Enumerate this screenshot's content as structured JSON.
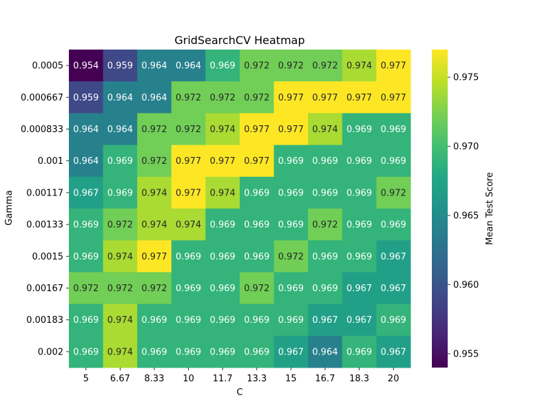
{
  "chart_data": {
    "type": "heatmap",
    "title": "GridSearchCV Heatmap",
    "xlabel": "C",
    "ylabel": "Gamma",
    "x_categories": [
      "5",
      "6.67",
      "8.33",
      "10",
      "11.7",
      "13.3",
      "15",
      "16.7",
      "18.3",
      "20"
    ],
    "y_categories": [
      "0.0005",
      "0.000667",
      "0.000833",
      "0.001",
      "0.00117",
      "0.00133",
      "0.0015",
      "0.00167",
      "0.00183",
      "0.002"
    ],
    "values": [
      [
        0.954,
        0.959,
        0.964,
        0.964,
        0.969,
        0.972,
        0.972,
        0.972,
        0.974,
        0.977
      ],
      [
        0.959,
        0.964,
        0.964,
        0.972,
        0.972,
        0.972,
        0.977,
        0.977,
        0.977,
        0.977
      ],
      [
        0.964,
        0.964,
        0.972,
        0.972,
        0.974,
        0.977,
        0.977,
        0.974,
        0.969,
        0.969
      ],
      [
        0.964,
        0.969,
        0.972,
        0.977,
        0.977,
        0.977,
        0.969,
        0.969,
        0.969,
        0.969
      ],
      [
        0.967,
        0.969,
        0.974,
        0.977,
        0.974,
        0.969,
        0.969,
        0.969,
        0.969,
        0.972
      ],
      [
        0.969,
        0.972,
        0.974,
        0.974,
        0.969,
        0.969,
        0.969,
        0.972,
        0.969,
        0.969
      ],
      [
        0.969,
        0.974,
        0.977,
        0.969,
        0.969,
        0.969,
        0.972,
        0.969,
        0.969,
        0.967
      ],
      [
        0.972,
        0.972,
        0.972,
        0.969,
        0.969,
        0.972,
        0.969,
        0.969,
        0.967,
        0.967
      ],
      [
        0.969,
        0.974,
        0.969,
        0.969,
        0.969,
        0.969,
        0.969,
        0.967,
        0.967,
        0.969
      ],
      [
        0.969,
        0.974,
        0.969,
        0.969,
        0.969,
        0.969,
        0.967,
        0.964,
        0.969,
        0.967
      ]
    ],
    "colormap": "viridis",
    "colorbar": {
      "label": "Mean Test Score",
      "range": [
        0.954,
        0.977
      ],
      "ticks": [
        0.955,
        0.96,
        0.965,
        0.97,
        0.975
      ],
      "tick_labels": [
        "0.955",
        "0.960",
        "0.965",
        "0.970",
        "0.975"
      ]
    },
    "annotations": true,
    "grid": false,
    "legend": "colorbar-right"
  }
}
